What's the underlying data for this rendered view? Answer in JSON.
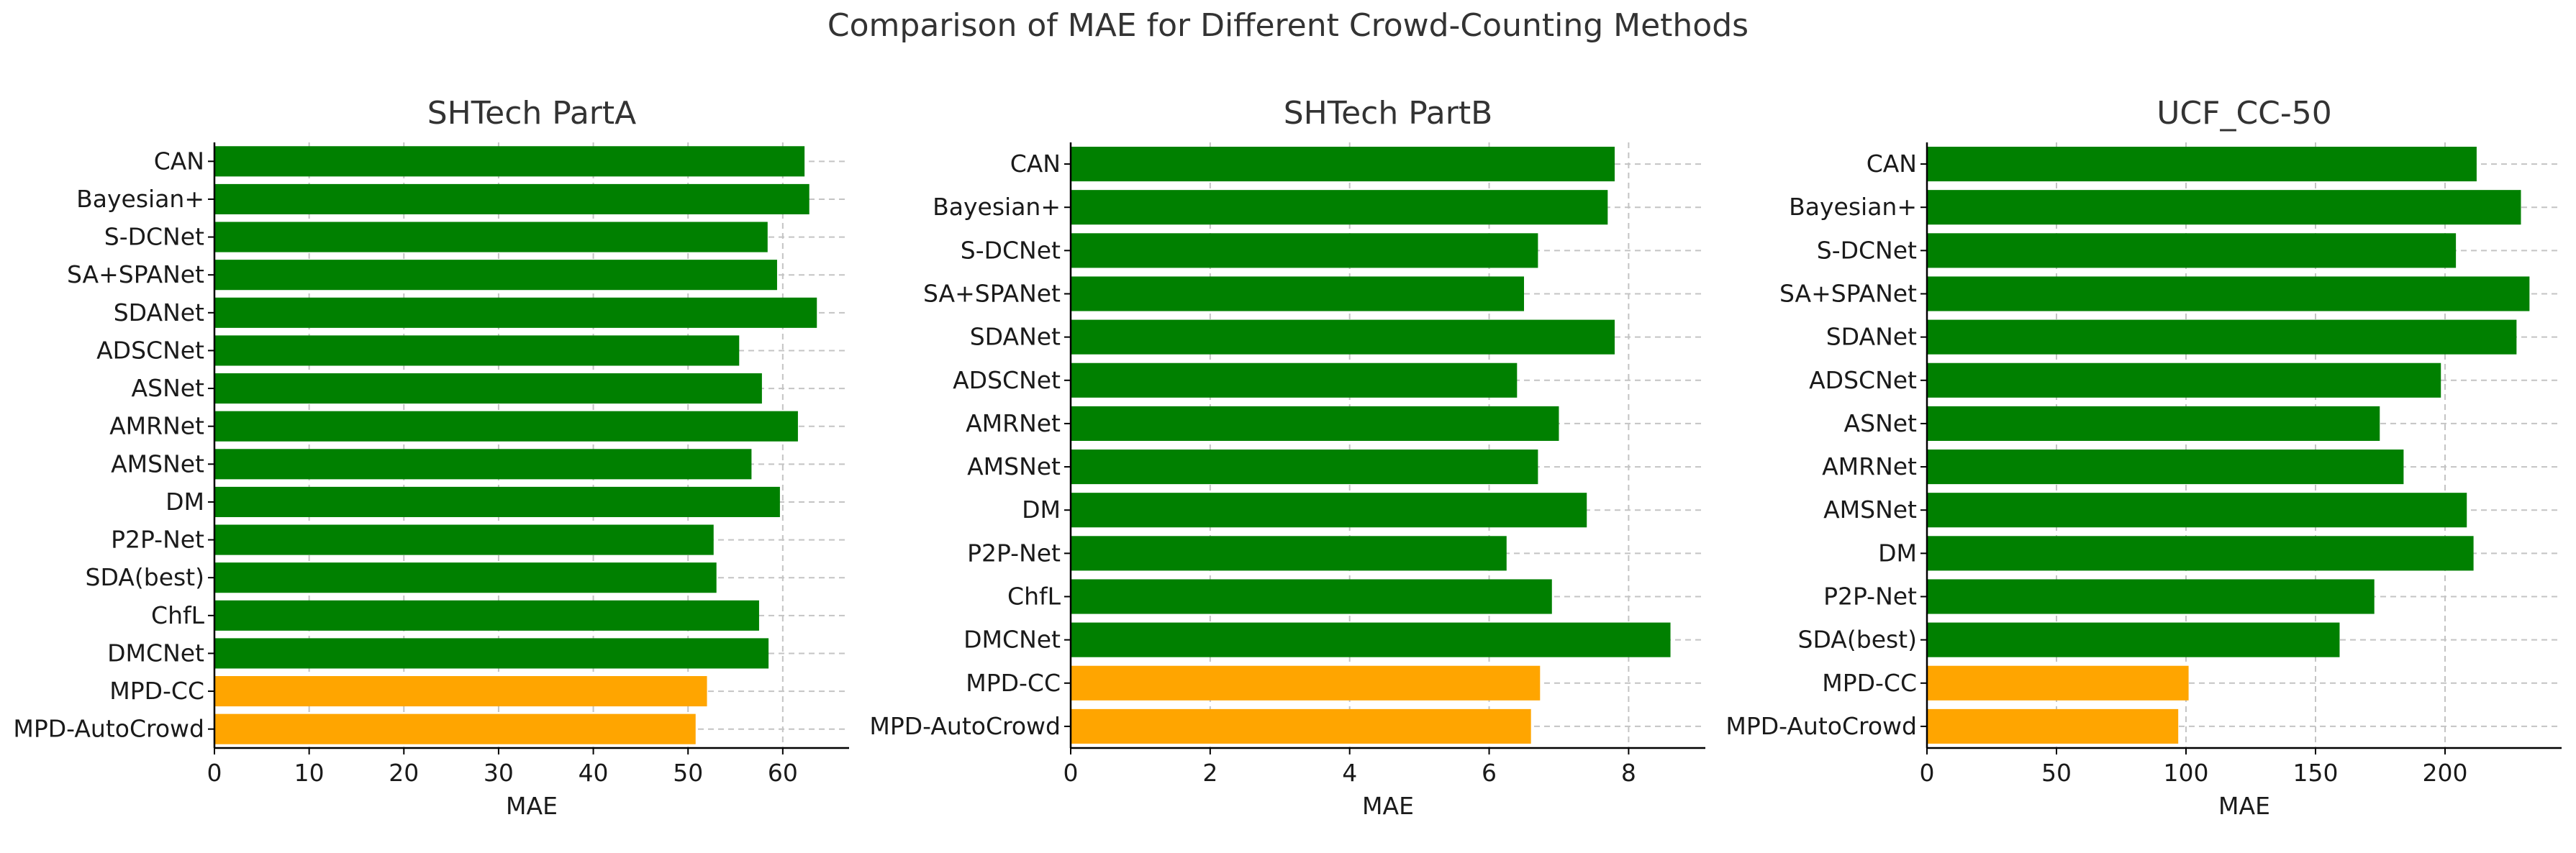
{
  "figure": {
    "title": "Comparison of MAE for Different Crowd-Counting Methods"
  },
  "colors": {
    "baseline": "#008000",
    "proposed": "#ffa500"
  },
  "chart_data": [
    {
      "type": "bar",
      "orientation": "horizontal",
      "title": "SHTech PartA",
      "xlabel": "MAE",
      "ylabel": "",
      "xlim": [
        0,
        67
      ],
      "xticks": [
        0,
        10,
        20,
        30,
        40,
        50,
        60
      ],
      "grid": true,
      "categories": [
        "CAN",
        "Bayesian+",
        "S-DCNet",
        "SA+SPANet",
        "SDANet",
        "ADSCNet",
        "ASNet",
        "AMRNet",
        "AMSNet",
        "DM",
        "P2P-Net",
        "SDA(best)",
        "ChfL",
        "DMCNet",
        "MPD-CC",
        "MPD-AutoCrowd"
      ],
      "values": [
        62.3,
        62.8,
        58.4,
        59.4,
        63.6,
        55.4,
        57.8,
        61.6,
        56.7,
        59.7,
        52.7,
        53.0,
        57.5,
        58.5,
        52.0,
        50.8
      ],
      "highlight": [
        "MPD-CC",
        "MPD-AutoCrowd"
      ]
    },
    {
      "type": "bar",
      "orientation": "horizontal",
      "title": "SHTech PartB",
      "xlabel": "MAE",
      "ylabel": "",
      "xlim": [
        0,
        9.1
      ],
      "xticks": [
        0,
        2,
        4,
        6,
        8
      ],
      "grid": true,
      "categories": [
        "CAN",
        "Bayesian+",
        "S-DCNet",
        "SA+SPANet",
        "SDANet",
        "ADSCNet",
        "AMRNet",
        "AMSNet",
        "DM",
        "P2P-Net",
        "ChfL",
        "DMCNet",
        "MPD-CC",
        "MPD-AutoCrowd"
      ],
      "values": [
        7.8,
        7.7,
        6.7,
        6.5,
        7.8,
        6.4,
        7.0,
        6.7,
        7.4,
        6.25,
        6.9,
        8.6,
        6.73,
        6.6
      ],
      "highlight": [
        "MPD-CC",
        "MPD-AutoCrowd"
      ]
    },
    {
      "type": "bar",
      "orientation": "horizontal",
      "title": "UCF_CC-50",
      "xlabel": "MAE",
      "ylabel": "",
      "xlim": [
        0,
        245
      ],
      "xticks": [
        0,
        50,
        100,
        150,
        200
      ],
      "grid": true,
      "categories": [
        "CAN",
        "Bayesian+",
        "S-DCNet",
        "SA+SPANet",
        "SDANet",
        "ADSCNet",
        "ASNet",
        "AMRNet",
        "AMSNet",
        "DM",
        "P2P-Net",
        "SDA(best)",
        "MPD-CC",
        "MPD-AutoCrowd"
      ],
      "values": [
        212.2,
        229.3,
        204.2,
        232.6,
        227.6,
        198.4,
        174.8,
        184.0,
        208.4,
        211.0,
        172.7,
        159.3,
        101.0,
        97.0
      ],
      "highlight": [
        "MPD-CC",
        "MPD-AutoCrowd"
      ]
    }
  ]
}
